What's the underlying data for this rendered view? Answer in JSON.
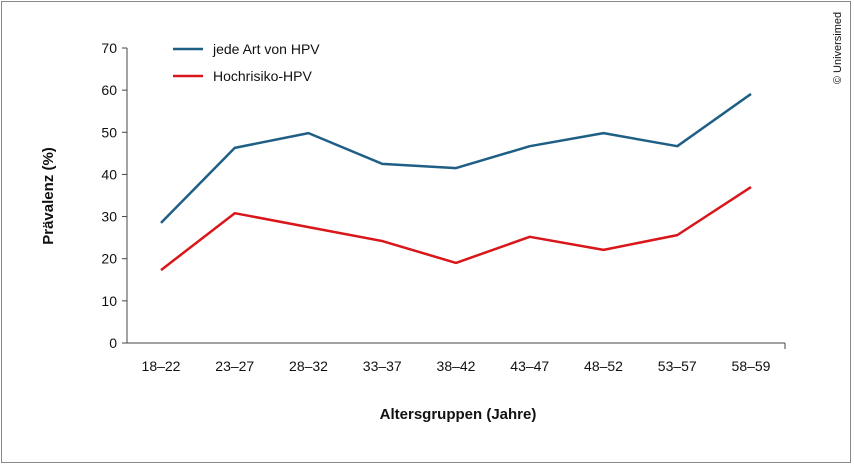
{
  "chart_data": {
    "type": "line",
    "title": "",
    "xlabel": "Altersgruppen (Jahre)",
    "ylabel": "Prävalenz (%)",
    "ylim": [
      0,
      70
    ],
    "yticks": [
      0,
      10,
      20,
      30,
      40,
      50,
      60,
      70
    ],
    "categories": [
      "18–22",
      "23–27",
      "28–32",
      "33–37",
      "38–42",
      "43–47",
      "48–52",
      "53–57",
      "58–59"
    ],
    "series": [
      {
        "name": "jede Art von HPV",
        "color": "#1f5f85",
        "values": [
          28.5,
          46.3,
          49.8,
          42.5,
          41.5,
          46.7,
          49.8,
          46.7,
          59.1
        ]
      },
      {
        "name": "Hochrisiko-HPV",
        "color": "#d9161a",
        "values": [
          17.3,
          30.8,
          27.5,
          24.2,
          19.0,
          25.2,
          22.1,
          25.6,
          37.0
        ]
      }
    ],
    "legend_position": "top-left",
    "grid": false
  },
  "copyright": "© Universimed"
}
